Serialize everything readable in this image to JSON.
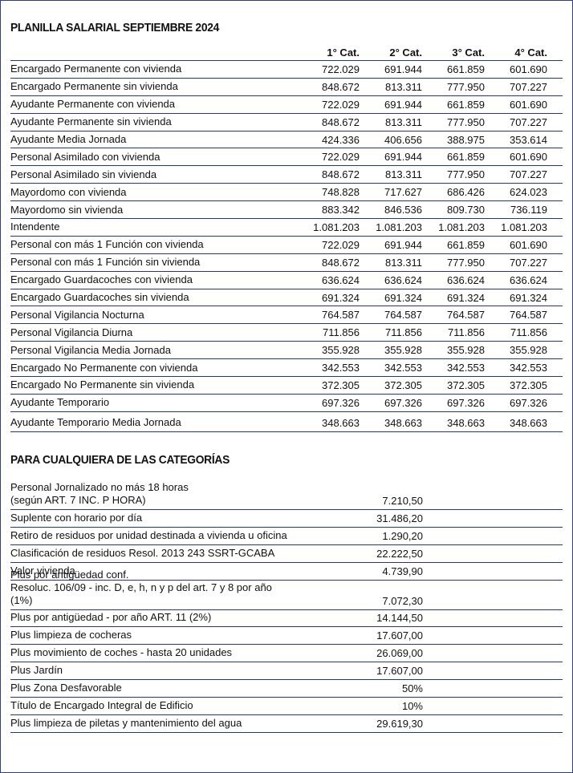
{
  "title": "PLANILLA SALARIAL SEPTIEMBRE 2024",
  "table": {
    "columns": [
      "1° Cat.",
      "2° Cat.",
      "3° Cat.",
      "4° Cat."
    ],
    "rows": [
      {
        "label": "Encargado Permanente con vivienda",
        "values": [
          "722.029",
          "691.944",
          "661.859",
          "601.690"
        ]
      },
      {
        "label": "Encargado Permanente sin vivienda",
        "values": [
          "848.672",
          "813.311",
          "777.950",
          "707.227"
        ]
      },
      {
        "label": "Ayudante Permanente con vivienda",
        "values": [
          "722.029",
          "691.944",
          "661.859",
          "601.690"
        ]
      },
      {
        "label": "Ayudante Permanente sin vivienda",
        "values": [
          "848.672",
          "813.311",
          "777.950",
          "707.227"
        ]
      },
      {
        "label": "Ayudante Media Jornada",
        "values": [
          "424.336",
          "406.656",
          "388.975",
          "353.614"
        ]
      },
      {
        "label": "Personal Asimilado con vivienda",
        "values": [
          "722.029",
          "691.944",
          "661.859",
          "601.690"
        ]
      },
      {
        "label": "Personal Asimilado sin vivienda",
        "values": [
          "848.672",
          "813.311",
          "777.950",
          "707.227"
        ]
      },
      {
        "label": "Mayordomo con vivienda",
        "values": [
          "748.828",
          "717.627",
          "686.426",
          "624.023"
        ]
      },
      {
        "label": "Mayordomo sin vivienda",
        "values": [
          "883.342",
          "846.536",
          "809.730",
          "736.119"
        ]
      },
      {
        "label": "Intendente",
        "values": [
          "1.081.203",
          "1.081.203",
          "1.081.203",
          "1.081.203"
        ]
      },
      {
        "label": "Personal con más 1 Función con vivienda",
        "values": [
          "722.029",
          "691.944",
          "661.859",
          "601.690"
        ]
      },
      {
        "label": "Personal con más 1 Función sin vivienda",
        "values": [
          "848.672",
          "813.311",
          "777.950",
          "707.227"
        ]
      },
      {
        "label": "Encargado Guardacoches con vivienda",
        "values": [
          "636.624",
          "636.624",
          "636.624",
          "636.624"
        ]
      },
      {
        "label": "Encargado Guardacoches sin vivienda",
        "values": [
          "691.324",
          "691.324",
          "691.324",
          "691.324"
        ]
      },
      {
        "label": "Personal Vigilancia Nocturna",
        "values": [
          "764.587",
          "764.587",
          "764.587",
          "764.587"
        ]
      },
      {
        "label": "Personal Vigilancia Diurna",
        "values": [
          "711.856",
          "711.856",
          "711.856",
          "711.856"
        ]
      },
      {
        "label": "Personal Vigilancia Media Jornada",
        "values": [
          "355.928",
          "355.928",
          "355.928",
          "355.928"
        ]
      },
      {
        "label": "Encargado No Permanente con vivienda",
        "values": [
          "342.553",
          "342.553",
          "342.553",
          "342.553"
        ]
      },
      {
        "label": "Encargado No Permanente sin vivienda",
        "values": [
          "372.305",
          "372.305",
          "372.305",
          "372.305"
        ]
      },
      {
        "label": "Ayudante Temporario",
        "values": [
          "697.326",
          "697.326",
          "697.326",
          "697.326"
        ]
      },
      {
        "label": "Ayudante Temporario Media Jornada",
        "values": [
          "348.663",
          "348.663",
          "348.663",
          "348.663"
        ]
      }
    ]
  },
  "section2": {
    "title": "PARA CUALQUIERA DE LAS CATEGORÍAS",
    "rows": [
      {
        "label": "Personal Jornalizado no más 18 horas\n(según ART. 7 INC. P HORA)",
        "value": "7.210,50"
      },
      {
        "label": "Suplente con horario por día",
        "value": "31.486,20"
      },
      {
        "label": "Retiro de residuos por unidad destinada a vivienda u oficina",
        "value": "1.290,20"
      },
      {
        "label": "Clasificación de residuos Resol. 2013 243 SSRT-GCABA",
        "value": "22.222,50"
      },
      {
        "label": "Valor vivienda",
        "value": "4.739,90"
      },
      {
        "label": "Plus por antigüedad conf.\nResoluc. 106/09 - inc. D, e, h, n y p del art. 7 y 8 por año (1%)",
        "value": "7.072,30"
      },
      {
        "label": "Plus por antigüedad - por año ART. 11 (2%)",
        "value": "14.144,50"
      },
      {
        "label": "Plus limpieza de cocheras",
        "value": "17.607,00"
      },
      {
        "label": "Plus movimiento de coches - hasta 20 unidades",
        "value": "26.069,00"
      },
      {
        "label": "Plus Jardín",
        "value": "17.607,00"
      },
      {
        "label": "Plus Zona Desfavorable",
        "value": "50%"
      },
      {
        "label": "Título de Encargado Integral de Edificio",
        "value": "10%"
      },
      {
        "label": "Plus limpieza de piletas y mantenimiento del agua",
        "value": "29.619,30"
      }
    ]
  }
}
